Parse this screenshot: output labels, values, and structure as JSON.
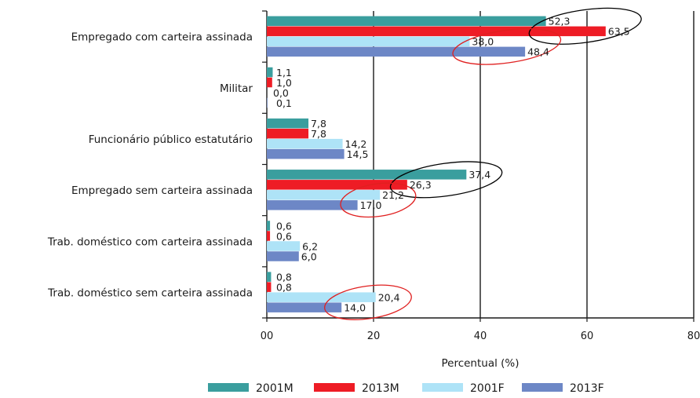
{
  "chart_data": {
    "type": "bar",
    "orientation": "horizontal",
    "categories": [
      "Empregado com carteira assinada",
      "Militar",
      "Funcionário público estatutário",
      "Empregado sem carteira assinada",
      "Trab. doméstico com carteira assinada",
      "Trab. doméstico sem carteira assinada"
    ],
    "series": [
      {
        "name": "2001M",
        "color": "#3a9e9e",
        "values": [
          52.3,
          1.1,
          7.8,
          37.4,
          0.6,
          0.8
        ],
        "labels": [
          "52,3",
          "1,1",
          "7,8",
          "37,4",
          "0,6",
          "0,8"
        ]
      },
      {
        "name": "2013M",
        "color": "#ee1c25",
        "values": [
          63.5,
          1.0,
          7.8,
          26.3,
          0.6,
          0.8
        ],
        "labels": [
          "63,5",
          "1,0",
          "7,8",
          "26,3",
          "0,6",
          "0,8"
        ]
      },
      {
        "name": "2001F",
        "color": "#aee3f7",
        "values": [
          38.0,
          0.0,
          14.2,
          21.2,
          6.2,
          20.4
        ],
        "labels": [
          "38,0",
          "0,0",
          "14,2",
          "21,2",
          "6,2",
          "20,4"
        ]
      },
      {
        "name": "2013F",
        "color": "#6d87c6",
        "values": [
          48.4,
          0.1,
          14.5,
          17.0,
          6.0,
          14.0
        ],
        "labels": [
          "48,4",
          "0,1",
          "14,5",
          "17,0",
          "6,0",
          "14,0"
        ]
      }
    ],
    "xlim": [
      0,
      80
    ],
    "xticks": [
      0,
      20,
      40,
      60,
      80
    ],
    "xtick_labels": [
      "00",
      "20",
      "40",
      "60",
      "80"
    ],
    "xlabel": "Percentual (%)",
    "grid": "vertical",
    "legend_position": "bottom",
    "highlight_ellipses": [
      {
        "category": "Empregado com carteira assinada",
        "series": [
          "2001M",
          "2013M"
        ],
        "color": "#000000"
      },
      {
        "category": "Empregado com carteira assinada",
        "series": [
          "2001F",
          "2013F"
        ],
        "color": "#e02020"
      },
      {
        "category": "Empregado sem carteira assinada",
        "series": [
          "2001M",
          "2013M"
        ],
        "color": "#000000"
      },
      {
        "category": "Empregado sem carteira assinada",
        "series": [
          "2001F",
          "2013F"
        ],
        "color": "#e02020"
      },
      {
        "category": "Trab. doméstico sem carteira assinada",
        "series": [
          "2001F",
          "2013F"
        ],
        "color": "#e02020"
      }
    ]
  }
}
